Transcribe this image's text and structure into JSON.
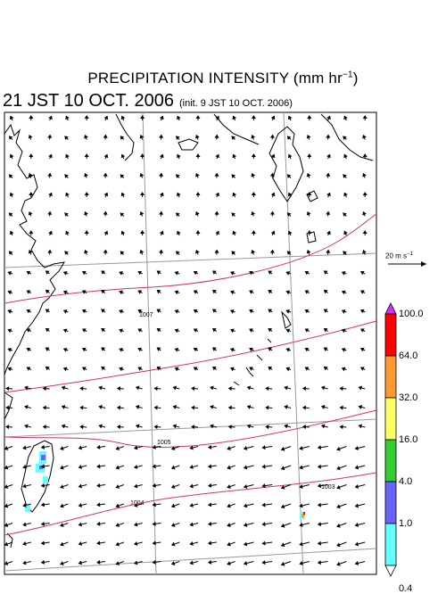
{
  "title": {
    "main": "PRECIPITATION INTENSITY (mm hr",
    "unit_sup": "−1",
    "close": ")",
    "valid_time": "21 JST 10 OCT. 2006",
    "init_time": "(init. 9 JST 10 OCT. 2006)"
  },
  "vector_key": {
    "label_base": "20 m s",
    "label_sup": "−1"
  },
  "legend": {
    "labels": [
      "100.0",
      "64.0",
      "32.0",
      "16.0",
      "4.0",
      "1.0",
      "0.4"
    ],
    "colors": [
      "#ff0000",
      "#ff9933",
      "#ffff66",
      "#33cc33",
      "#6666ff",
      "#66ffff"
    ],
    "over_color": "#cc33ff",
    "under_color": "#ffffff"
  },
  "isobars": [
    {
      "label": "1007"
    },
    {
      "label": "1005"
    },
    {
      "label": "1004"
    },
    {
      "label": "1003"
    }
  ],
  "colors": {
    "isobar": "#cc3377",
    "grid": "#999999",
    "coast": "#000000"
  }
}
